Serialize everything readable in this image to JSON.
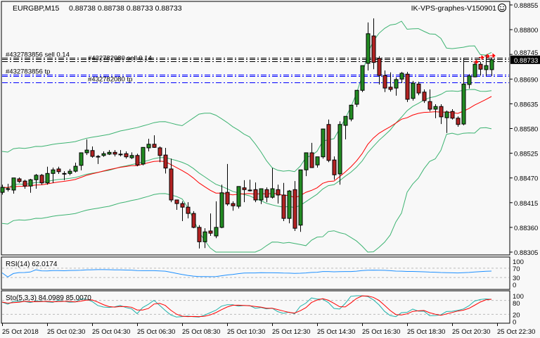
{
  "header": {
    "symbol_timeframe": "EURGBP,M15",
    "ohlc_readout": "0.88738 0.88738 0.88733 0.88733",
    "expert_name": "IK-VPS-graphes-V150901",
    "expert_icon": "smiley-face-icon"
  },
  "colors": {
    "background": "#f8f8f8",
    "bull_candle": "#228b22",
    "bear_candle": "#b22222",
    "bands": "#3cb371",
    "moving_average": "#ff0000",
    "rsi": "#1e90ff",
    "stoch_main": "#20b2aa",
    "stoch_signal": "#ff0000",
    "order_line": "#000000",
    "tp_line": "#0000ff",
    "current_price_box": "#000000"
  },
  "orders": [
    {
      "label": "#432783856 sell 0.14",
      "price": 0.88737,
      "kind": "sell"
    },
    {
      "label": "",
      "price": 0.88734,
      "kind": "sell"
    },
    {
      "label": "#432782080 sell 0.14",
      "price": 0.8873,
      "kind": "sell"
    },
    {
      "label": "#432783856 tp",
      "price": 0.887,
      "kind": "tp"
    },
    {
      "label": "",
      "price": 0.88697,
      "kind": "tp"
    },
    {
      "label": "#432782080 tp",
      "price": 0.88683,
      "kind": "tp"
    }
  ],
  "chart_data": [
    {
      "type": "candlestick",
      "title": "EURGBP,M15",
      "current_price": "0.88733",
      "ylim": [
        0.88305,
        0.88855
      ],
      "y_ticks": [
        "0.88855",
        "0.88800",
        "0.88745",
        "0.88690",
        "0.88635",
        "0.88580",
        "0.88525",
        "0.88470",
        "0.88415",
        "0.88360",
        "0.88305"
      ],
      "x_ticks": [
        "25 Oct 2018",
        "25 Oct 02:30",
        "25 Oct 04:30",
        "25 Oct 06:30",
        "25 Oct 08:30",
        "25 Oct 10:30",
        "25 Oct 12:30",
        "25 Oct 14:30",
        "25 Oct 16:30",
        "25 Oct 18:30",
        "25 Oct 20:30",
        "25 Oct 22:30"
      ],
      "overlays": [
        "Bollinger Bands",
        "Moving Average"
      ],
      "grid": false,
      "ohlc": [
        [
          0.88438,
          0.88455,
          0.88433,
          0.88449
        ],
        [
          0.88446,
          0.88457,
          0.8844,
          0.88446
        ],
        [
          0.88443,
          0.8847,
          0.88435,
          0.8847
        ],
        [
          0.88468,
          0.88471,
          0.88459,
          0.88462
        ],
        [
          0.88463,
          0.88466,
          0.88446,
          0.88452
        ],
        [
          0.88452,
          0.88468,
          0.88437,
          0.88466
        ],
        [
          0.88466,
          0.88479,
          0.88446,
          0.88476
        ],
        [
          0.88476,
          0.88479,
          0.88455,
          0.88459
        ],
        [
          0.88459,
          0.88495,
          0.88455,
          0.8848
        ],
        [
          0.8848,
          0.88493,
          0.88459,
          0.88488
        ],
        [
          0.8849,
          0.88495,
          0.88479,
          0.88484
        ],
        [
          0.8848,
          0.88485,
          0.88465,
          0.8848
        ],
        [
          0.8848,
          0.8849,
          0.88476,
          0.88485
        ],
        [
          0.88485,
          0.88504,
          0.88482,
          0.88496
        ],
        [
          0.88498,
          0.88526,
          0.88487,
          0.88526
        ],
        [
          0.88526,
          0.88556,
          0.88521,
          0.88532
        ],
        [
          0.88531,
          0.8854,
          0.88515,
          0.88518
        ],
        [
          0.88518,
          0.88521,
          0.88501,
          0.88518
        ],
        [
          0.8852,
          0.88529,
          0.88517,
          0.88524
        ],
        [
          0.88523,
          0.88532,
          0.88521,
          0.88527
        ],
        [
          0.88527,
          0.88532,
          0.88518,
          0.88523
        ],
        [
          0.88523,
          0.88532,
          0.88518,
          0.88523
        ],
        [
          0.88524,
          0.88529,
          0.88513,
          0.88517
        ],
        [
          0.88515,
          0.88527,
          0.88512,
          0.8852
        ],
        [
          0.8852,
          0.88524,
          0.88496,
          0.88499
        ],
        [
          0.88501,
          0.88538,
          0.88498,
          0.88538
        ],
        [
          0.88537,
          0.88557,
          0.88529,
          0.88545
        ],
        [
          0.88545,
          0.88565,
          0.88537,
          0.88538
        ],
        [
          0.88537,
          0.8854,
          0.88505,
          0.8852
        ],
        [
          0.88521,
          0.88537,
          0.8848,
          0.88492
        ],
        [
          0.8849,
          0.88513,
          0.88416,
          0.88421
        ],
        [
          0.88421,
          0.88421,
          0.88399,
          0.88413
        ],
        [
          0.88413,
          0.88418,
          0.88374,
          0.88405
        ],
        [
          0.88405,
          0.88416,
          0.8838,
          0.88391
        ],
        [
          0.88391,
          0.88396,
          0.88358,
          0.8836
        ],
        [
          0.8836,
          0.88365,
          0.88313,
          0.88328
        ],
        [
          0.88328,
          0.88358,
          0.88314,
          0.8835
        ],
        [
          0.88352,
          0.88391,
          0.88341,
          0.88347
        ],
        [
          0.88341,
          0.88418,
          0.88336,
          0.8836
        ],
        [
          0.8836,
          0.88455,
          0.88358,
          0.88437
        ],
        [
          0.88438,
          0.88501,
          0.88408,
          0.88412
        ],
        [
          0.88413,
          0.88418,
          0.88397,
          0.88408
        ],
        [
          0.88407,
          0.88451,
          0.88402,
          0.88451
        ],
        [
          0.88448,
          0.88465,
          0.88416,
          0.88444
        ],
        [
          0.88443,
          0.88466,
          0.8844,
          0.88443
        ],
        [
          0.88444,
          0.8846,
          0.88416,
          0.88421
        ],
        [
          0.88421,
          0.88446,
          0.88412,
          0.88446
        ],
        [
          0.88444,
          0.88449,
          0.88416,
          0.88427
        ],
        [
          0.88427,
          0.88492,
          0.88424,
          0.88446
        ],
        [
          0.88444,
          0.88455,
          0.88413,
          0.88432
        ],
        [
          0.88432,
          0.88459,
          0.88374,
          0.8838
        ],
        [
          0.8838,
          0.88443,
          0.88369,
          0.88441
        ],
        [
          0.88444,
          0.88463,
          0.88352,
          0.88358
        ],
        [
          0.88365,
          0.88488,
          0.8835,
          0.88488
        ],
        [
          0.88488,
          0.88526,
          0.88474,
          0.88526
        ],
        [
          0.88526,
          0.88548,
          0.88493,
          0.88493
        ],
        [
          0.88499,
          0.88517,
          0.88493,
          0.88517
        ],
        [
          0.88517,
          0.88579,
          0.88513,
          0.88579
        ],
        [
          0.88589,
          0.886,
          0.88505,
          0.88509
        ],
        [
          0.8851,
          0.88518,
          0.88466,
          0.88477
        ],
        [
          0.88479,
          0.88596,
          0.88455,
          0.88589
        ],
        [
          0.88587,
          0.88607,
          0.88556,
          0.88607
        ],
        [
          0.88601,
          0.88632,
          0.88596,
          0.88632
        ],
        [
          0.88634,
          0.88665,
          0.88628,
          0.88665
        ],
        [
          0.88665,
          0.8872,
          0.88661,
          0.8872
        ],
        [
          0.88725,
          0.88816,
          0.88709,
          0.88791
        ],
        [
          0.88786,
          0.88825,
          0.88712,
          0.88727
        ],
        [
          0.88736,
          0.88741,
          0.88678,
          0.88698
        ],
        [
          0.88698,
          0.88709,
          0.88661,
          0.8867
        ],
        [
          0.88672,
          0.88705,
          0.88662,
          0.88667
        ],
        [
          0.8867,
          0.88694,
          0.88653,
          0.88689
        ],
        [
          0.8869,
          0.88706,
          0.88681,
          0.88703
        ],
        [
          0.88701,
          0.88706,
          0.88639,
          0.88645
        ],
        [
          0.88647,
          0.88686,
          0.88642,
          0.88681
        ],
        [
          0.88679,
          0.88684,
          0.88654,
          0.88659
        ],
        [
          0.88661,
          0.88667,
          0.88637,
          0.88642
        ],
        [
          0.8864,
          0.88667,
          0.88618,
          0.88623
        ],
        [
          0.88623,
          0.88634,
          0.88603,
          0.88629
        ],
        [
          0.88629,
          0.88634,
          0.8859,
          0.88606
        ],
        [
          0.88604,
          0.8862,
          0.8857,
          0.88617
        ],
        [
          0.88618,
          0.88623,
          0.886,
          0.88603
        ],
        [
          0.88603,
          0.88607,
          0.88584,
          0.88589
        ],
        [
          0.8859,
          0.88737,
          0.88587,
          0.88679
        ],
        [
          0.88678,
          0.88701,
          0.88669,
          0.88697
        ],
        [
          0.88695,
          0.88728,
          0.88694,
          0.88723
        ],
        [
          0.88723,
          0.88728,
          0.88698,
          0.88712
        ],
        [
          0.88711,
          0.88744,
          0.88697,
          0.8872
        ],
        [
          0.88711,
          0.88738,
          0.88697,
          0.88733
        ]
      ]
    },
    {
      "type": "line",
      "title": "RSI(14) 62.0174",
      "ylim": [
        0,
        100
      ],
      "y_ticks": [
        "100",
        "70",
        "30",
        "0"
      ],
      "levels": [
        70,
        30
      ]
    },
    {
      "type": "line",
      "title": "Sto(5,3,3) 84.0989 85.0070",
      "ylim": [
        0,
        100
      ],
      "y_ticks": [
        "100",
        "80",
        "20",
        "0"
      ],
      "levels": [
        80,
        20
      ]
    }
  ]
}
